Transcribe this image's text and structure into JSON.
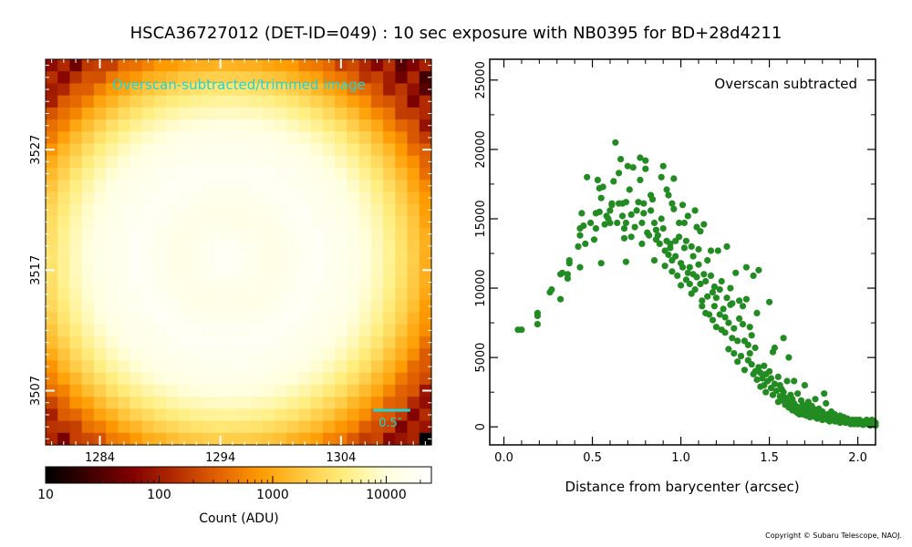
{
  "page": {
    "title": "HSCA36727012 (DET-ID=049) :  10 sec exposure with NB0395 for BD+28d4211",
    "copyright": "Copyright © Subaru Telescope, NAOJ."
  },
  "colors": {
    "image_label": "#22d3d3",
    "scatter_points": "#228b22",
    "colormap": [
      "#000000",
      "#3d0000",
      "#800000",
      "#b22a00",
      "#e06000",
      "#ff9a00",
      "#ffc840",
      "#ffee80",
      "#ffffe0",
      "#ffffff"
    ]
  },
  "chart_data": [
    {
      "type": "heatmap",
      "label": "Overscan-subtracted/trimmed image",
      "x_tick_labels": [
        "1284",
        "1294",
        "1304"
      ],
      "x_ticks": [
        1284,
        1294,
        1304
      ],
      "y_tick_labels": [
        "3507",
        "3517",
        "3527"
      ],
      "y_ticks": [
        3507,
        3517,
        3527
      ],
      "xlim": [
        1279.5,
        1311.5
      ],
      "ylim": [
        3502.5,
        3534.5
      ],
      "grid_size": 32,
      "star_center": [
        1294.5,
        3518
      ],
      "scale_bar_label": "0.5″",
      "colorbar": {
        "scale": "log",
        "range": [
          10,
          25000
        ],
        "tick_labels": [
          "10",
          "100",
          "1000",
          "10000"
        ],
        "ticks": [
          10,
          100,
          1000,
          10000
        ],
        "label": "Count (ADU)"
      }
    },
    {
      "type": "scatter",
      "annotation": "Overscan subtracted",
      "xlabel": "Distance from barycenter (arcsec)",
      "xlim": [
        -0.08,
        2.1
      ],
      "ylim": [
        -1300,
        26500
      ],
      "x_ticks": [
        0.0,
        0.5,
        1.0,
        1.5,
        2.0
      ],
      "x_tick_labels": [
        "0.0",
        "0.5",
        "1.0",
        "1.5",
        "2.0"
      ],
      "y_ticks": [
        0,
        5000,
        10000,
        15000,
        20000,
        25000
      ],
      "y_tick_labels": [
        "0",
        "5000",
        "10000",
        "15000",
        "20000",
        "25000"
      ],
      "points": [
        [
          0.08,
          7000
        ],
        [
          0.1,
          7000
        ],
        [
          0.19,
          7400
        ],
        [
          0.19,
          8000
        ],
        [
          0.19,
          8200
        ],
        [
          0.26,
          9700
        ],
        [
          0.27,
          9900
        ],
        [
          0.32,
          9200
        ],
        [
          0.32,
          11000
        ],
        [
          0.33,
          11100
        ],
        [
          0.36,
          11000
        ],
        [
          0.36,
          10700
        ],
        [
          0.37,
          11800
        ],
        [
          0.37,
          12000
        ],
        [
          0.42,
          13000
        ],
        [
          0.43,
          11500
        ],
        [
          0.43,
          13800
        ],
        [
          0.43,
          14300
        ],
        [
          0.44,
          15400
        ],
        [
          0.45,
          14500
        ],
        [
          0.46,
          13200
        ],
        [
          0.47,
          18000
        ],
        [
          0.49,
          14700
        ],
        [
          0.51,
          13500
        ],
        [
          0.52,
          14300
        ],
        [
          0.52,
          15400
        ],
        [
          0.53,
          17800
        ],
        [
          0.54,
          15500
        ],
        [
          0.54,
          17200
        ],
        [
          0.55,
          11800
        ],
        [
          0.55,
          16500
        ],
        [
          0.56,
          17300
        ],
        [
          0.57,
          14600
        ],
        [
          0.58,
          15200
        ],
        [
          0.59,
          15000
        ],
        [
          0.6,
          14700
        ],
        [
          0.6,
          15600
        ],
        [
          0.61,
          16100
        ],
        [
          0.61,
          16000
        ],
        [
          0.62,
          17700
        ],
        [
          0.63,
          20500
        ],
        [
          0.64,
          14700
        ],
        [
          0.65,
          16100
        ],
        [
          0.65,
          18300
        ],
        [
          0.66,
          19300
        ],
        [
          0.67,
          15200
        ],
        [
          0.67,
          16100
        ],
        [
          0.68,
          14300
        ],
        [
          0.68,
          13600
        ],
        [
          0.69,
          11900
        ],
        [
          0.69,
          14700
        ],
        [
          0.69,
          16200
        ],
        [
          0.7,
          18800
        ],
        [
          0.71,
          17100
        ],
        [
          0.72,
          13700
        ],
        [
          0.72,
          15300
        ],
        [
          0.73,
          18700
        ],
        [
          0.74,
          14400
        ],
        [
          0.75,
          15600
        ],
        [
          0.76,
          16200
        ],
        [
          0.77,
          17800
        ],
        [
          0.77,
          19400
        ],
        [
          0.78,
          13200
        ],
        [
          0.78,
          14700
        ],
        [
          0.79,
          15400
        ],
        [
          0.79,
          16100
        ],
        [
          0.8,
          19200
        ],
        [
          0.8,
          18600
        ],
        [
          0.81,
          14000
        ],
        [
          0.82,
          13800
        ],
        [
          0.83,
          15600
        ],
        [
          0.83,
          16700
        ],
        [
          0.84,
          16400
        ],
        [
          0.85,
          14700
        ],
        [
          0.85,
          12000
        ],
        [
          0.86,
          13500
        ],
        [
          0.86,
          14200
        ],
        [
          0.87,
          13800
        ],
        [
          0.88,
          13200
        ],
        [
          0.89,
          15000
        ],
        [
          0.89,
          18000
        ],
        [
          0.9,
          14300
        ],
        [
          0.9,
          18800
        ],
        [
          0.91,
          12700
        ],
        [
          0.91,
          11600
        ],
        [
          0.92,
          13400
        ],
        [
          0.92,
          17100
        ],
        [
          0.93,
          12400
        ],
        [
          0.93,
          16700
        ],
        [
          0.94,
          13200
        ],
        [
          0.94,
          12900
        ],
        [
          0.95,
          12000
        ],
        [
          0.95,
          11200
        ],
        [
          0.95,
          16100
        ],
        [
          0.96,
          15700
        ],
        [
          0.96,
          17900
        ],
        [
          0.97,
          13400
        ],
        [
          0.97,
          12300
        ],
        [
          0.98,
          10900
        ],
        [
          0.99,
          14700
        ],
        [
          0.99,
          13700
        ],
        [
          1.0,
          11800
        ],
        [
          1.0,
          10200
        ],
        [
          1.01,
          16000
        ],
        [
          1.01,
          11500
        ],
        [
          1.02,
          12900
        ],
        [
          1.02,
          14700
        ],
        [
          1.03,
          10600
        ],
        [
          1.03,
          13400
        ],
        [
          1.04,
          11100
        ],
        [
          1.04,
          15200
        ],
        [
          1.05,
          10300
        ],
        [
          1.05,
          11500
        ],
        [
          1.06,
          9600
        ],
        [
          1.06,
          13000
        ],
        [
          1.07,
          11000
        ],
        [
          1.07,
          12300
        ],
        [
          1.08,
          9900
        ],
        [
          1.08,
          15600
        ],
        [
          1.09,
          10800
        ],
        [
          1.09,
          14400
        ],
        [
          1.1,
          11700
        ],
        [
          1.1,
          12800
        ],
        [
          1.11,
          10300
        ],
        [
          1.11,
          14100
        ],
        [
          1.12,
          9100
        ],
        [
          1.12,
          8700
        ],
        [
          1.13,
          11000
        ],
        [
          1.13,
          14600
        ],
        [
          1.14,
          8200
        ],
        [
          1.14,
          10500
        ],
        [
          1.15,
          9400
        ],
        [
          1.15,
          12000
        ],
        [
          1.16,
          8100
        ],
        [
          1.17,
          10900
        ],
        [
          1.17,
          12700
        ],
        [
          1.18,
          7700
        ],
        [
          1.18,
          9700
        ],
        [
          1.19,
          8700
        ],
        [
          1.19,
          10100
        ],
        [
          1.2,
          7200
        ],
        [
          1.2,
          9300
        ],
        [
          1.21,
          12700
        ],
        [
          1.22,
          8100
        ],
        [
          1.22,
          9900
        ],
        [
          1.23,
          7000
        ],
        [
          1.23,
          10500
        ],
        [
          1.24,
          8500
        ],
        [
          1.25,
          6800
        ],
        [
          1.25,
          7900
        ],
        [
          1.26,
          9300
        ],
        [
          1.26,
          13000
        ],
        [
          1.27,
          5600
        ],
        [
          1.27,
          7500
        ],
        [
          1.28,
          8800
        ],
        [
          1.28,
          10000
        ],
        [
          1.29,
          6400
        ],
        [
          1.29,
          8900
        ],
        [
          1.3,
          5300
        ],
        [
          1.3,
          7100
        ],
        [
          1.31,
          11100
        ],
        [
          1.32,
          4700
        ],
        [
          1.32,
          6200
        ],
        [
          1.33,
          7800
        ],
        [
          1.33,
          9100
        ],
        [
          1.34,
          5100
        ],
        [
          1.35,
          7400
        ],
        [
          1.35,
          8700
        ],
        [
          1.36,
          4100
        ],
        [
          1.36,
          6200
        ],
        [
          1.37,
          9200
        ],
        [
          1.37,
          11500
        ],
        [
          1.38,
          4800
        ],
        [
          1.38,
          5900
        ],
        [
          1.39,
          5300
        ],
        [
          1.39,
          7200
        ],
        [
          1.4,
          4500
        ],
        [
          1.4,
          6600
        ],
        [
          1.41,
          3800
        ],
        [
          1.41,
          10900
        ],
        [
          1.42,
          4000
        ],
        [
          1.42,
          5700
        ],
        [
          1.43,
          3400
        ],
        [
          1.43,
          8200
        ],
        [
          1.44,
          4300
        ],
        [
          1.44,
          11300
        ],
        [
          1.45,
          2900
        ],
        [
          1.45,
          3900
        ],
        [
          1.46,
          3500
        ],
        [
          1.47,
          3000
        ],
        [
          1.47,
          4400
        ],
        [
          1.48,
          3800
        ],
        [
          1.48,
          2500
        ],
        [
          1.49,
          3300
        ],
        [
          1.5,
          4000
        ],
        [
          1.5,
          9000
        ],
        [
          1.51,
          2800
        ],
        [
          1.51,
          3500
        ],
        [
          1.52,
          2300
        ],
        [
          1.52,
          5400
        ],
        [
          1.53,
          3100
        ],
        [
          1.53,
          5700
        ],
        [
          1.54,
          2600
        ],
        [
          1.55,
          3600
        ],
        [
          1.55,
          1800
        ],
        [
          1.56,
          2200
        ],
        [
          1.56,
          3000
        ],
        [
          1.57,
          1900
        ],
        [
          1.57,
          2700
        ],
        [
          1.58,
          6400
        ],
        [
          1.58,
          2500
        ],
        [
          1.59,
          1600
        ],
        [
          1.59,
          2100
        ],
        [
          1.6,
          1900
        ],
        [
          1.6,
          3300
        ],
        [
          1.61,
          1400
        ],
        [
          1.61,
          5000
        ],
        [
          1.62,
          2300
        ],
        [
          1.62,
          1600
        ],
        [
          1.63,
          1200
        ],
        [
          1.63,
          2000
        ],
        [
          1.64,
          1700
        ],
        [
          1.64,
          3300
        ],
        [
          1.65,
          1100
        ],
        [
          1.65,
          1500
        ],
        [
          1.66,
          2400
        ],
        [
          1.66,
          1000
        ],
        [
          1.67,
          1400
        ],
        [
          1.67,
          900
        ],
        [
          1.68,
          1900
        ],
        [
          1.68,
          1200
        ],
        [
          1.69,
          1600
        ],
        [
          1.69,
          900
        ],
        [
          1.7,
          1300
        ],
        [
          1.7,
          3000
        ],
        [
          1.71,
          800
        ],
        [
          1.71,
          1400
        ],
        [
          1.72,
          1000
        ],
        [
          1.72,
          1800
        ],
        [
          1.73,
          700
        ],
        [
          1.73,
          1200
        ],
        [
          1.74,
          1500
        ],
        [
          1.74,
          800
        ],
        [
          1.75,
          900
        ],
        [
          1.75,
          1300
        ],
        [
          1.76,
          700
        ],
        [
          1.76,
          2000
        ],
        [
          1.77,
          1000
        ],
        [
          1.77,
          600
        ],
        [
          1.78,
          800
        ],
        [
          1.78,
          1300
        ],
        [
          1.79,
          600
        ],
        [
          1.79,
          900
        ],
        [
          1.8,
          1100
        ],
        [
          1.8,
          500
        ],
        [
          1.81,
          800
        ],
        [
          1.81,
          2400
        ],
        [
          1.82,
          600
        ],
        [
          1.82,
          1700
        ],
        [
          1.83,
          500
        ],
        [
          1.83,
          900
        ],
        [
          1.84,
          700
        ],
        [
          1.84,
          400
        ],
        [
          1.85,
          800
        ],
        [
          1.85,
          1100
        ],
        [
          1.86,
          500
        ],
        [
          1.86,
          700
        ],
        [
          1.87,
          400
        ],
        [
          1.87,
          900
        ],
        [
          1.88,
          600
        ],
        [
          1.88,
          400
        ],
        [
          1.89,
          700
        ],
        [
          1.89,
          500
        ],
        [
          1.9,
          300
        ],
        [
          1.9,
          800
        ],
        [
          1.91,
          500
        ],
        [
          1.91,
          600
        ],
        [
          1.92,
          400
        ],
        [
          1.92,
          700
        ],
        [
          1.93,
          300
        ],
        [
          1.93,
          500
        ],
        [
          1.94,
          600
        ],
        [
          1.94,
          400
        ],
        [
          1.95,
          300
        ],
        [
          1.95,
          500
        ],
        [
          1.96,
          400
        ],
        [
          1.96,
          200
        ],
        [
          1.97,
          500
        ],
        [
          1.97,
          300
        ],
        [
          1.98,
          400
        ],
        [
          1.98,
          200
        ],
        [
          1.99,
          300
        ],
        [
          1.99,
          500
        ],
        [
          2.0,
          200
        ],
        [
          2.0,
          400
        ],
        [
          2.01,
          300
        ],
        [
          2.01,
          500
        ],
        [
          2.02,
          200
        ],
        [
          2.02,
          400
        ],
        [
          2.03,
          300
        ],
        [
          2.03,
          150
        ],
        [
          2.04,
          400
        ],
        [
          2.04,
          200
        ],
        [
          2.05,
          300
        ],
        [
          2.05,
          500
        ],
        [
          2.06,
          200
        ],
        [
          2.06,
          400
        ],
        [
          2.07,
          300
        ],
        [
          2.07,
          100
        ],
        [
          2.08,
          300
        ],
        [
          2.08,
          500
        ],
        [
          2.09,
          200
        ],
        [
          2.09,
          400
        ],
        [
          2.1,
          300
        ],
        [
          2.1,
          100
        ]
      ]
    }
  ]
}
